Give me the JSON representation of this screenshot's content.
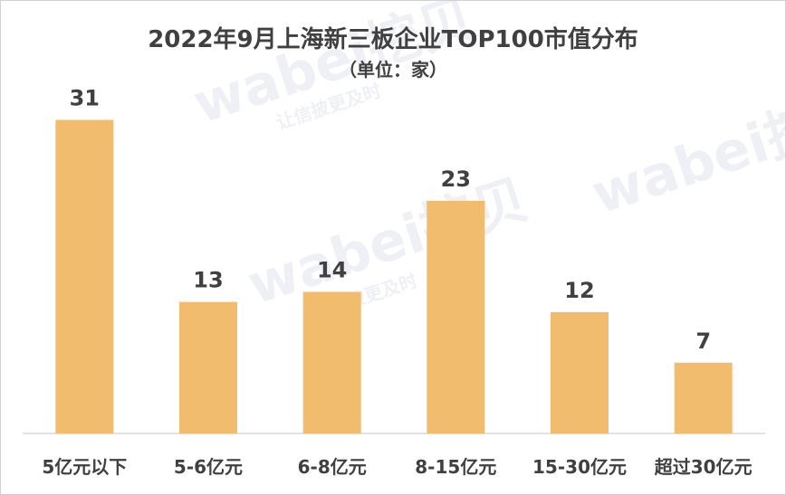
{
  "title": "2022年9月上海新三板企业TOP100市值分布",
  "subtitle": "（单位：家）",
  "watermark": {
    "brand": "wabei挖贝",
    "slogan": "让信披更及时"
  },
  "colors": {
    "bar": "#f2bc6f",
    "axis": "#d9d9d9",
    "label": "#404040"
  },
  "chart_data": {
    "type": "bar",
    "title": "2022年9月上海新三板企业TOP100市值分布",
    "subtitle": "（单位：家）",
    "categories": [
      "5亿元以下",
      "5-6亿元",
      "6-8亿元",
      "8-15亿元",
      "15-30亿元",
      "超过30亿元"
    ],
    "values": [
      31,
      13,
      14,
      23,
      12,
      7
    ],
    "ylim": [
      0,
      34
    ],
    "grid": false,
    "legend": "none"
  }
}
